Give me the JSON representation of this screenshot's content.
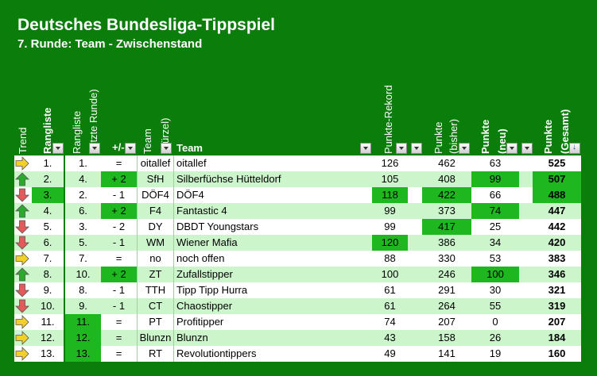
{
  "title": "Deutsches Bundesliga-Tippspiel",
  "subtitle": "7. Runde: Team - Zwischenstand",
  "headers": {
    "trend": "Trend",
    "rangliste": "Rangliste",
    "rangliste_letzte_1": "Rangliste",
    "rangliste_letzte_2": "(letzte Runde)",
    "plusminus": "+/-",
    "team_kuerzel_1": "Team",
    "team_kuerzel_2": "(Kürzel)",
    "team": "Team",
    "punkte_rekord": "Punkte-Rekord",
    "punkte_bisher_1": "Punkte",
    "punkte_bisher_2": "(bisher)",
    "punkte_neu_1": "Punkte",
    "punkte_neu_2": "(neu)",
    "punkte_gesamt_1": "Punkte",
    "punkte_gesamt_2": "(Gesamt)"
  },
  "colors": {
    "background": "#0b7d0b",
    "row_light": "#ccf5cc",
    "row_white": "#ffffff",
    "highlight": "#1fb71f",
    "arrow_up": "#2ea82e",
    "arrow_down": "#e25a5a",
    "arrow_right": "#f2d02a"
  },
  "rows": [
    {
      "trend": "right",
      "rank": "1.",
      "last": "1.",
      "diff": "=",
      "short": "oitallef",
      "team": "oitallef",
      "record": "126",
      "prev": "462",
      "neu": "63",
      "total": "525"
    },
    {
      "trend": "up",
      "rank": "2.",
      "last": "4.",
      "diff": "+ 2",
      "short": "SfH",
      "team": "Silberfüchse Hütteldorf",
      "record": "105",
      "prev": "408",
      "neu": "99",
      "total": "507"
    },
    {
      "trend": "down",
      "rank": "3.",
      "last": "2.",
      "diff": "- 1",
      "short": "DÖF4",
      "team": "DÖF4",
      "record": "118",
      "prev": "422",
      "neu": "66",
      "total": "488"
    },
    {
      "trend": "up",
      "rank": "4.",
      "last": "6.",
      "diff": "+ 2",
      "short": "F4",
      "team": "Fantastic 4",
      "record": "99",
      "prev": "373",
      "neu": "74",
      "total": "447"
    },
    {
      "trend": "down",
      "rank": "5.",
      "last": "3.",
      "diff": "- 2",
      "short": "DY",
      "team": "DBDT Youngstars",
      "record": "99",
      "prev": "417",
      "neu": "25",
      "total": "442"
    },
    {
      "trend": "down",
      "rank": "6.",
      "last": "5.",
      "diff": "- 1",
      "short": "WM",
      "team": "Wiener Mafia",
      "record": "120",
      "prev": "386",
      "neu": "34",
      "total": "420"
    },
    {
      "trend": "right",
      "rank": "7.",
      "last": "7.",
      "diff": "=",
      "short": "no",
      "team": "noch offen",
      "record": "88",
      "prev": "330",
      "neu": "53",
      "total": "383"
    },
    {
      "trend": "up",
      "rank": "8.",
      "last": "10.",
      "diff": "+ 2",
      "short": "ZT",
      "team": "Zufallstipper",
      "record": "100",
      "prev": "246",
      "neu": "100",
      "total": "346"
    },
    {
      "trend": "down",
      "rank": "9.",
      "last": "8.",
      "diff": "- 1",
      "short": "TTH",
      "team": "Tipp Tipp Hurra",
      "record": "61",
      "prev": "291",
      "neu": "30",
      "total": "321"
    },
    {
      "trend": "down",
      "rank": "10.",
      "last": "9.",
      "diff": "- 1",
      "short": "CT",
      "team": "Chaostipper",
      "record": "61",
      "prev": "264",
      "neu": "55",
      "total": "319"
    },
    {
      "trend": "right",
      "rank": "11.",
      "last": "11.",
      "diff": "=",
      "short": "PT",
      "team": "Profitipper",
      "record": "74",
      "prev": "207",
      "neu": "0",
      "total": "207"
    },
    {
      "trend": "right",
      "rank": "12.",
      "last": "12.",
      "diff": "=",
      "short": "Blunzn",
      "team": "Blunzn",
      "record": "43",
      "prev": "158",
      "neu": "26",
      "total": "184"
    },
    {
      "trend": "right",
      "rank": "13.",
      "last": "13.",
      "diff": "=",
      "short": "RT",
      "team": "Revolutiontippers",
      "record": "49",
      "prev": "141",
      "neu": "19",
      "total": "160"
    }
  ],
  "highlights": [
    {
      "row": 1,
      "col": "diff"
    },
    {
      "row": 1,
      "col": "neu"
    },
    {
      "row": 1,
      "col": "total"
    },
    {
      "row": 2,
      "col": "rank"
    },
    {
      "row": 2,
      "col": "record"
    },
    {
      "row": 2,
      "col": "prev"
    },
    {
      "row": 2,
      "col": "total"
    },
    {
      "row": 3,
      "col": "diff"
    },
    {
      "row": 3,
      "col": "neu"
    },
    {
      "row": 4,
      "col": "prev"
    },
    {
      "row": 5,
      "col": "record"
    },
    {
      "row": 7,
      "col": "diff"
    },
    {
      "row": 7,
      "col": "neu"
    },
    {
      "row": 10,
      "col": "last"
    },
    {
      "row": 11,
      "col": "last"
    },
    {
      "row": 12,
      "col": "last"
    }
  ]
}
